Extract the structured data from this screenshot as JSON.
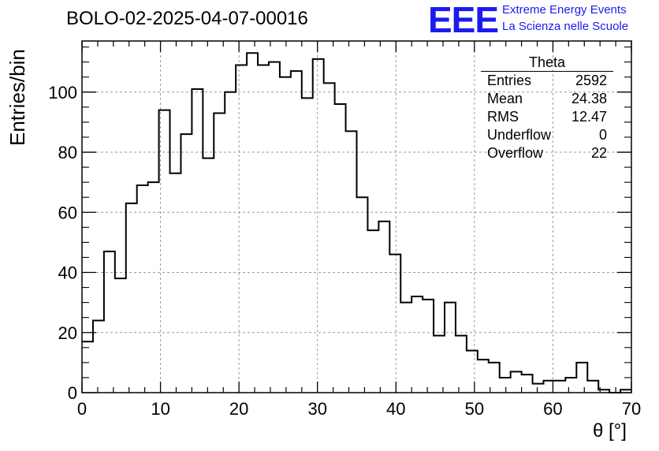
{
  "header": {
    "title": "BOLO-02-2025-04-07-00016",
    "logo_text": "EEE",
    "logo_line1": "Extreme Energy Events",
    "logo_line2": "La Scienza nelle Scuole"
  },
  "stats_box": {
    "title": "Theta",
    "rows": [
      {
        "label": "Entries",
        "value": "2592"
      },
      {
        "label": "Mean",
        "value": "24.38"
      },
      {
        "label": "RMS",
        "value": "12.47"
      },
      {
        "label": "Underflow",
        "value": "0"
      },
      {
        "label": "Overflow",
        "value": "22"
      }
    ]
  },
  "colors": {
    "line": "#000000",
    "grid": "#9a9a9a",
    "logo": "#1b1bf0"
  },
  "chart_data": {
    "type": "histogram",
    "xlabel": "θ [°]",
    "ylabel": "Entries/bin",
    "xlim": [
      0,
      70
    ],
    "ylim": [
      0,
      117
    ],
    "grid": true,
    "bin_width": 1.4,
    "x_ticks": [
      0,
      10,
      20,
      30,
      40,
      50,
      60,
      70
    ],
    "y_ticks": [
      0,
      20,
      40,
      60,
      80,
      100
    ],
    "values": [
      17,
      24,
      47,
      38,
      63,
      69,
      70,
      94,
      73,
      86,
      101,
      78,
      93,
      100,
      109,
      113,
      109,
      110,
      105,
      107,
      98,
      111,
      103,
      96,
      87,
      65,
      54,
      57,
      46,
      30,
      32,
      31,
      19,
      30,
      19,
      14,
      11,
      10,
      5,
      7,
      6,
      3,
      4,
      4,
      5,
      10,
      4,
      1,
      0,
      1
    ]
  }
}
